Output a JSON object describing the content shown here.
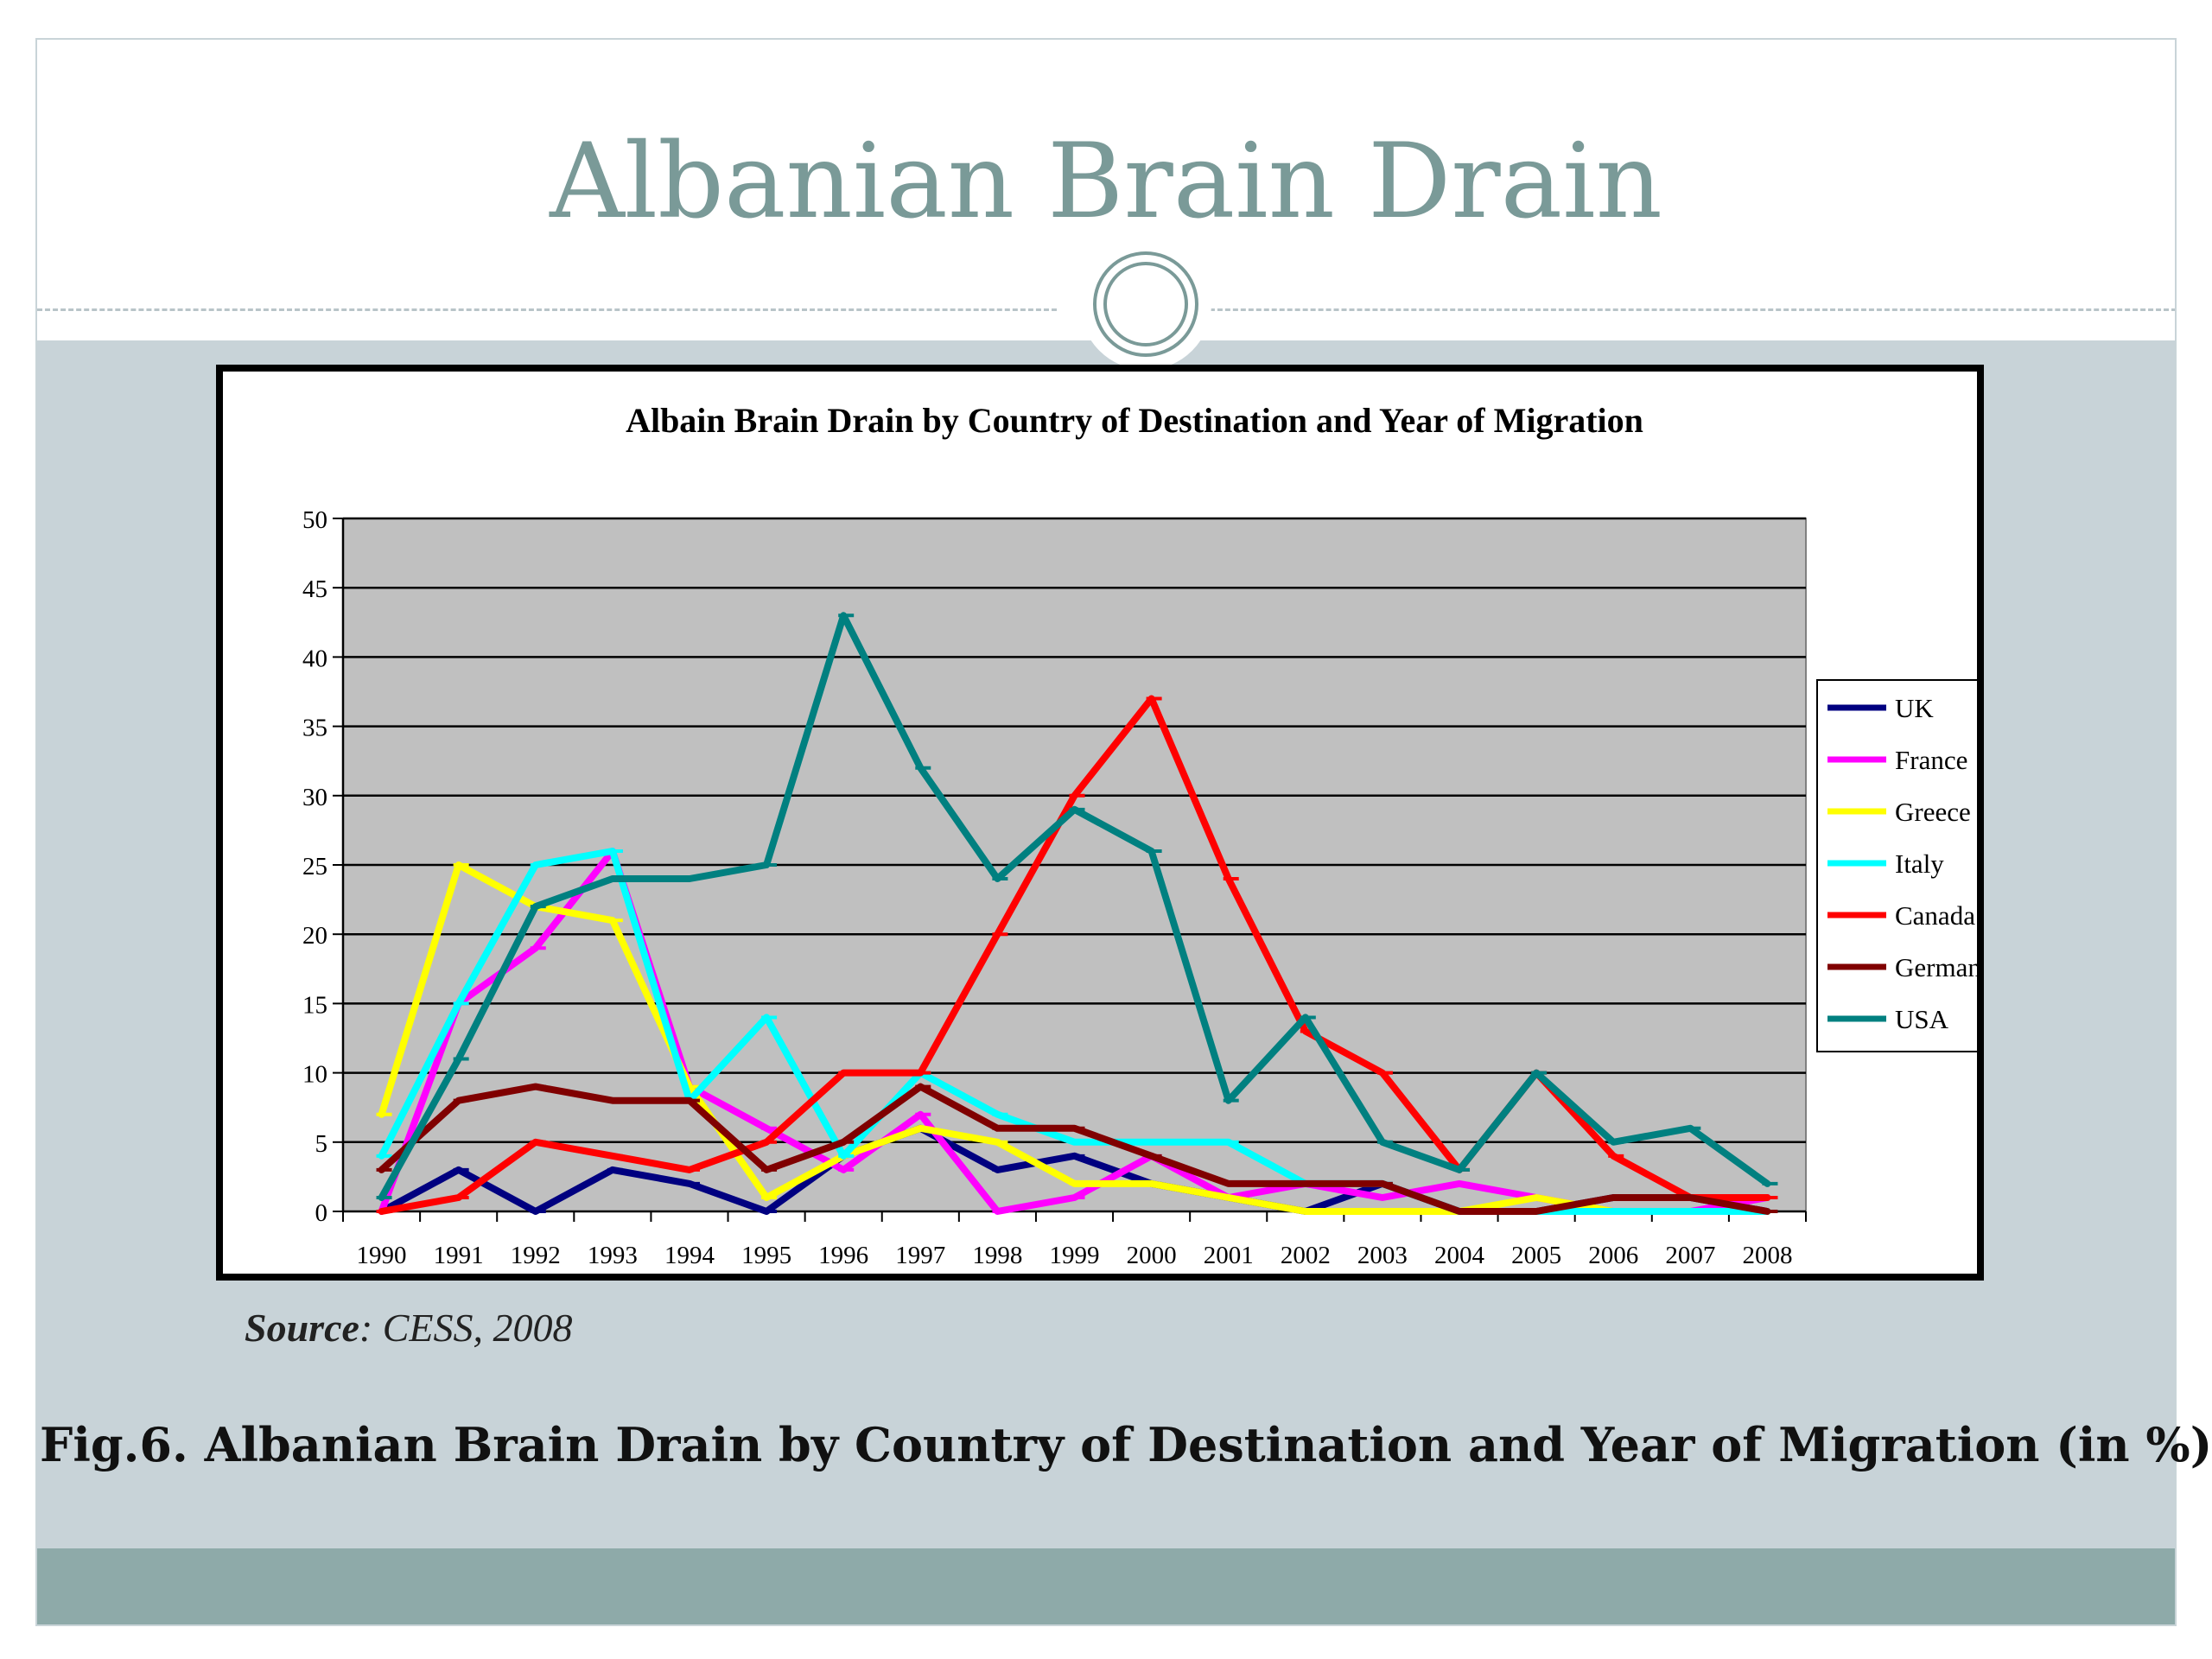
{
  "slide": {
    "title": "Albanian Brain Drain",
    "source_label": "Source",
    "source_text": ": CESS, 2008",
    "caption": "Fig.6. Albanian Brain Drain by Country of Destination and Year of Migration (in %)"
  },
  "theme": {
    "title_color": "#7a9a98",
    "content_background": "#c8d3d8",
    "footer_color": "#8eaaa9",
    "plot_background": "#c0c0c0"
  },
  "chart_data": {
    "type": "line",
    "title": "Albain Brain Drain by Country of Destination and Year of Migration",
    "xlabel": "",
    "ylabel": "",
    "ylim": [
      0,
      50
    ],
    "yticks": [
      0,
      5,
      10,
      15,
      20,
      25,
      30,
      35,
      40,
      45,
      50
    ],
    "grid": true,
    "legend_position": "right",
    "categories": [
      "1990",
      "1991",
      "1992",
      "1993",
      "1994",
      "1995",
      "1996",
      "1997",
      "1998",
      "1999",
      "2000",
      "2001",
      "2002",
      "2003",
      "2004",
      "2005",
      "2006",
      "2007",
      "2008"
    ],
    "series": [
      {
        "name": "UK",
        "color": "#000080",
        "values": [
          0,
          3,
          0,
          3,
          2,
          0,
          4,
          6,
          3,
          4,
          2,
          1,
          0,
          2,
          0,
          0,
          1,
          1,
          0
        ]
      },
      {
        "name": "France",
        "color": "#ff00ff",
        "values": [
          0,
          15,
          19,
          26,
          9,
          6,
          3,
          7,
          0,
          1,
          4,
          1,
          2,
          1,
          2,
          1,
          0,
          0,
          1
        ]
      },
      {
        "name": "Greece",
        "color": "#ffff00",
        "values": [
          7,
          25,
          22,
          21,
          9,
          1,
          4,
          6,
          5,
          2,
          2,
          1,
          0,
          0,
          0,
          1,
          0,
          0,
          0
        ]
      },
      {
        "name": "Italy",
        "color": "#00ffff",
        "values": [
          4,
          15,
          25,
          26,
          8,
          14,
          4,
          10,
          7,
          5,
          5,
          5,
          2,
          2,
          0,
          0,
          0,
          0,
          0
        ]
      },
      {
        "name": "Canada",
        "color": "#ff0000",
        "values": [
          0,
          1,
          5,
          4,
          3,
          5,
          10,
          10,
          20,
          30,
          37,
          24,
          13,
          10,
          3,
          10,
          4,
          1,
          1
        ]
      },
      {
        "name": "Germany",
        "color": "#800000",
        "values": [
          3,
          8,
          9,
          8,
          8,
          3,
          5,
          9,
          6,
          6,
          4,
          2,
          2,
          2,
          0,
          0,
          1,
          1,
          0
        ]
      },
      {
        "name": "USA",
        "color": "#008080",
        "values": [
          1,
          11,
          22,
          24,
          24,
          25,
          43,
          32,
          24,
          29,
          26,
          8,
          14,
          5,
          3,
          10,
          5,
          6,
          2
        ]
      }
    ]
  }
}
